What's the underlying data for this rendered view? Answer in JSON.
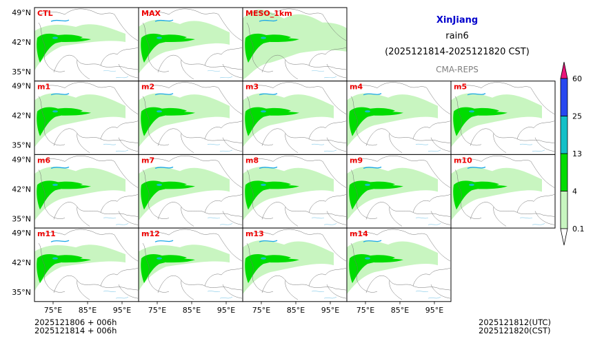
{
  "header": {
    "region": "XinJiang",
    "variable": "rain6",
    "period": "(2025121814-2025121820 CST)",
    "model": "CMA-REPS"
  },
  "footer": {
    "init_utc_line": "2025121806  +  006h",
    "init_cst_line": "2025121814  +  006h",
    "valid_utc": "2025121812(UTC)",
    "valid_cst": "2025121820(CST)"
  },
  "chart_data": {
    "type": "heatmap",
    "title": "rain6",
    "axes": {
      "lat_ticks": [
        "49°N",
        "42°N",
        "35°N"
      ],
      "lon_ticks": [
        "75°E",
        "85°E",
        "95°E"
      ],
      "lon_range": [
        70,
        100
      ],
      "lat_range": [
        33,
        50
      ]
    },
    "panels": [
      {
        "name": "CTL",
        "row": 0,
        "col": 0,
        "spread": 0
      },
      {
        "name": "MAX",
        "row": 0,
        "col": 1,
        "spread": 1
      },
      {
        "name": "MESO_1km",
        "row": 0,
        "col": 2,
        "spread": 3
      },
      {
        "name": "m1",
        "row": 1,
        "col": 0,
        "spread": 1
      },
      {
        "name": "m2",
        "row": 1,
        "col": 1,
        "spread": 1
      },
      {
        "name": "m3",
        "row": 1,
        "col": 2,
        "spread": 1
      },
      {
        "name": "m4",
        "row": 1,
        "col": 3,
        "spread": 1
      },
      {
        "name": "m5",
        "row": 1,
        "col": 4,
        "spread": 1
      },
      {
        "name": "m6",
        "row": 2,
        "col": 0,
        "spread": 1
      },
      {
        "name": "m7",
        "row": 2,
        "col": 1,
        "spread": 1
      },
      {
        "name": "m8",
        "row": 2,
        "col": 2,
        "spread": 1
      },
      {
        "name": "m9",
        "row": 2,
        "col": 3,
        "spread": 1
      },
      {
        "name": "m10",
        "row": 2,
        "col": 4,
        "spread": 1
      },
      {
        "name": "m11",
        "row": 3,
        "col": 0,
        "spread": 0
      },
      {
        "name": "m12",
        "row": 3,
        "col": 1,
        "spread": 0
      },
      {
        "name": "m13",
        "row": 3,
        "col": 2,
        "spread": 1
      },
      {
        "name": "m14",
        "row": 3,
        "col": 3,
        "spread": 1
      }
    ],
    "colorbar": {
      "levels": [
        "0.1",
        "4",
        "13",
        "25",
        "60"
      ],
      "colors": [
        "#c8f5c0",
        "#00dc00",
        "#14c0c8",
        "#2848f0"
      ],
      "over_color": "#e8147a",
      "under_color": "#ffffff"
    }
  }
}
